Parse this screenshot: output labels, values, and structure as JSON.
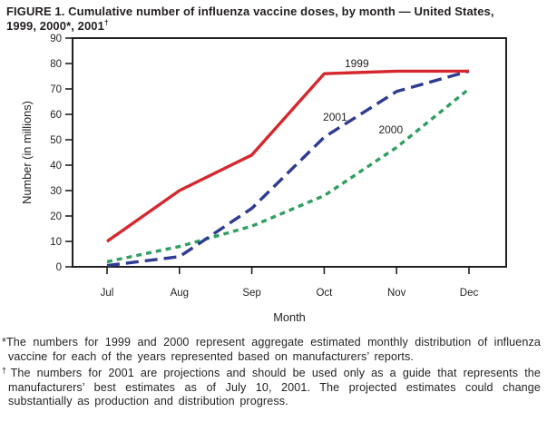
{
  "title": {
    "line1": "FIGURE 1. Cumulative number of influenza vaccine doses, by month — United States,",
    "line2": "1999, 2000*, 2001",
    "superscript": "†"
  },
  "chart_data": {
    "type": "line",
    "title": "Cumulative number of influenza vaccine doses, by month — United States, 1999, 2000, 2001",
    "categories": [
      "Jul",
      "Aug",
      "Sep",
      "Oct",
      "Nov",
      "Dec"
    ],
    "xlabel": "Month",
    "ylabel": "Number (in millions)",
    "ylim": [
      0,
      90
    ],
    "yticks": [
      0,
      10,
      20,
      30,
      40,
      50,
      60,
      70,
      80,
      90
    ],
    "grid": false,
    "legend": "inline-line-labels",
    "axis_color": "#231f20",
    "series": [
      {
        "name": "1999",
        "color": "#d5282e",
        "dash": "solid",
        "values": [
          10,
          30,
          44,
          76,
          77,
          77
        ],
        "label_pos": {
          "month": 3.45,
          "value": 80
        }
      },
      {
        "name": "2001",
        "color": "#2e3b92",
        "dash": "long-dash",
        "values": [
          0.5,
          4,
          23,
          51,
          69,
          77
        ],
        "label_pos": {
          "month": 3.15,
          "value": 59
        }
      },
      {
        "name": "2000",
        "color": "#2f9f62",
        "dash": "short-dash",
        "values": [
          2,
          8,
          16,
          28,
          47,
          70
        ],
        "label_pos": {
          "month": 3.92,
          "value": 54
        }
      }
    ]
  },
  "footnotes": [
    {
      "marker": "*",
      "text": "The numbers for 1999 and 2000 represent aggregate estimated monthly distribution of influenza vaccine for each of the years represented based on manufacturers’ reports."
    },
    {
      "marker": "†",
      "text": "The numbers for 2001 are projections and should be used only as a guide that represents the manufacturers’ best estimates as of July 10, 2001. The projected estimates could change substantially as production and distribution progress."
    }
  ]
}
